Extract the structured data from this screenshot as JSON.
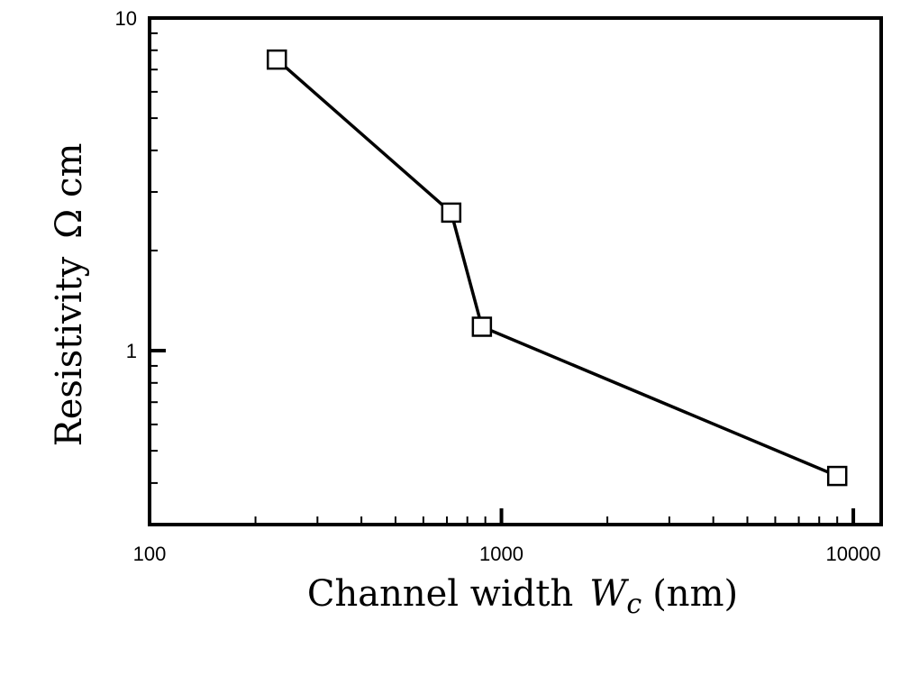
{
  "chart_data": {
    "type": "line",
    "title": "",
    "xlabel": {
      "prefix": "Channel width",
      "var_main": "W",
      "var_sub": "c",
      "unit": "(nm)"
    },
    "ylabel": {
      "text": "Resistivity",
      "unit": "Ω cm"
    },
    "x_scale": "log",
    "y_scale": "log",
    "xlim": [
      100,
      12000
    ],
    "ylim": [
      0.3,
      10
    ],
    "x_ticks": [
      {
        "value": 100,
        "label": "100"
      },
      {
        "value": 1000,
        "label": "1000"
      },
      {
        "value": 10000,
        "label": "10000"
      }
    ],
    "y_ticks": [
      {
        "value": 1,
        "label": "1"
      },
      {
        "value": 10,
        "label": "10"
      }
    ],
    "grid": false,
    "legend": "none",
    "marker": "open-square",
    "line_color": "#000000",
    "series": [
      {
        "x": [
          230,
          720,
          880,
          9000
        ],
        "y": [
          7.5,
          2.6,
          1.18,
          0.42
        ]
      }
    ]
  }
}
